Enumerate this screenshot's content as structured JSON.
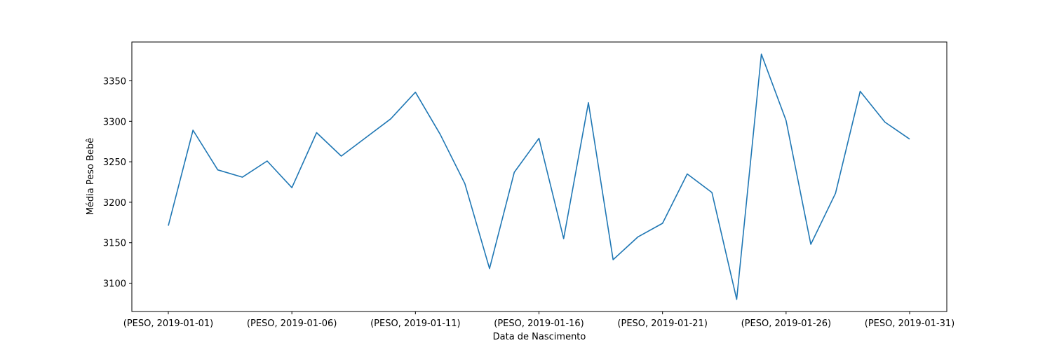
{
  "chart_data": {
    "type": "line",
    "title": "",
    "xlabel": "Data de Nascimento",
    "ylabel": "Média Peso Bebê",
    "x": [
      "2019-01-01",
      "2019-01-02",
      "2019-01-03",
      "2019-01-04",
      "2019-01-05",
      "2019-01-06",
      "2019-01-07",
      "2019-01-08",
      "2019-01-09",
      "2019-01-10",
      "2019-01-11",
      "2019-01-12",
      "2019-01-13",
      "2019-01-14",
      "2019-01-15",
      "2019-01-16",
      "2019-01-17",
      "2019-01-18",
      "2019-01-19",
      "2019-01-20",
      "2019-01-21",
      "2019-01-22",
      "2019-01-23",
      "2019-01-24",
      "2019-01-25",
      "2019-01-26",
      "2019-01-27",
      "2019-01-28",
      "2019-01-29",
      "2019-01-30",
      "2019-01-31"
    ],
    "xticks": [
      "(PESO, 2019-01-01)",
      "(PESO, 2019-01-06)",
      "(PESO, 2019-01-11)",
      "(PESO, 2019-01-16)",
      "(PESO, 2019-01-21)",
      "(PESO, 2019-01-26)",
      "(PESO, 2019-01-31)"
    ],
    "yticks": [
      3100,
      3150,
      3200,
      3250,
      3300,
      3350
    ],
    "ylim": [
      3065,
      3398
    ],
    "grid": false,
    "series": [
      {
        "color": "#1f77b4",
        "values": [
          3171,
          3289,
          3240,
          3231,
          3251,
          3218,
          3286,
          3257,
          3280,
          3303,
          3336,
          3284,
          3223,
          3118,
          3237,
          3279,
          3155,
          3323,
          3129,
          3157,
          3174,
          3235,
          3212,
          3080,
          3383,
          3301,
          3148,
          3211,
          3337,
          3299,
          3278
        ]
      }
    ]
  }
}
